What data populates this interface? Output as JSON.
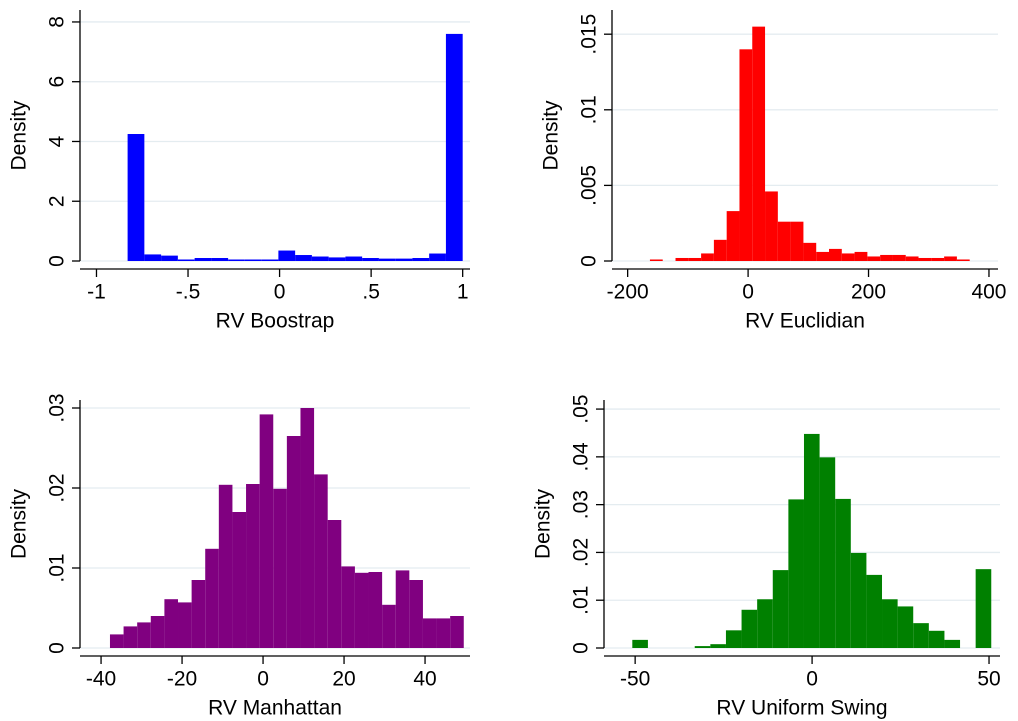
{
  "chart_data": [
    {
      "type": "histogram",
      "x_label": "RV Boostrap",
      "y_label": "Density",
      "color": "#0000ff",
      "grid": true,
      "bins": [
        -0.83,
        -0.7385,
        -0.647,
        -0.5555,
        -0.464,
        -0.3725,
        -0.281,
        -0.1895,
        -0.098,
        -0.0065,
        0.085,
        0.1765,
        0.268,
        0.3595,
        0.451,
        0.5425,
        0.634,
        0.7255,
        0.817,
        0.9085,
        1.0
      ],
      "values": [
        4.25,
        0.22,
        0.18,
        0.05,
        0.1,
        0.1,
        0.05,
        0.05,
        0.05,
        0.35,
        0.2,
        0.15,
        0.12,
        0.15,
        0.1,
        0.08,
        0.08,
        0.1,
        0.25,
        7.6
      ],
      "xlim": [
        -1.09,
        1.04
      ],
      "ylim": [
        0,
        8.4
      ],
      "xticks": [
        -1,
        {
          "value": -0.5,
          "label": "-.5"
        },
        0,
        {
          "value": 0.5,
          "label": ".5"
        },
        1
      ],
      "yticks": [
        0,
        2,
        4,
        6,
        8
      ]
    },
    {
      "type": "histogram",
      "x_label": "RV Euclidian",
      "y_label": "Density",
      "color": "#ff0000",
      "grid": true,
      "bins": [
        -163,
        -141.76,
        -120.52,
        -99.28,
        -78.04,
        -56.8,
        -35.56,
        -14.32,
        6.92,
        28.16,
        49.4,
        70.64,
        91.88,
        113.12,
        134.36,
        155.6,
        176.84,
        198.08,
        219.32,
        240.56,
        261.8,
        283.04,
        304.28,
        325.52,
        346.76,
        368
      ],
      "values": [
        0.0001,
        0,
        0.0002,
        0.0002,
        0.0005,
        0.0014,
        0.0033,
        0.014,
        0.0155,
        0.0046,
        0.0026,
        0.0026,
        0.0012,
        0.0006,
        0.0008,
        0.0005,
        0.0006,
        0.0003,
        0.0004,
        0.0004,
        0.0003,
        0.0002,
        0.0002,
        0.0003,
        0.0001
      ],
      "xlim": [
        -226,
        415
      ],
      "ylim": [
        0,
        0.0166
      ],
      "xticks": [
        -200,
        0,
        200,
        400
      ],
      "yticks": [
        0,
        {
          "value": 0.005,
          "label": ".005"
        },
        {
          "value": 0.01,
          "label": ".01"
        },
        {
          "value": 0.015,
          "label": ".015"
        }
      ]
    },
    {
      "type": "histogram",
      "x_label": "RV Manhattan",
      "y_label": "Density",
      "color": "#800080",
      "grid": true,
      "bins": [
        -37.8,
        -34.44,
        -31.08,
        -27.72,
        -24.36,
        -21.0,
        -17.64,
        -14.28,
        -10.92,
        -7.56,
        -4.2,
        -0.84,
        2.52,
        5.88,
        9.24,
        12.6,
        15.96,
        19.32,
        22.68,
        26.04,
        29.4,
        32.76,
        36.12,
        39.48,
        42.84,
        46.2,
        49.56
      ],
      "values": [
        0.0017,
        0.0027,
        0.0032,
        0.004,
        0.0061,
        0.0057,
        0.0085,
        0.0124,
        0.0204,
        0.017,
        0.0205,
        0.0292,
        0.0199,
        0.0265,
        0.03,
        0.0217,
        0.016,
        0.0102,
        0.0094,
        0.0095,
        0.0054,
        0.0097,
        0.0085,
        0.0037,
        0.0037,
        0.004
      ],
      "xlim": [
        -45.2,
        51.1
      ],
      "ylim": [
        0,
        0.031
      ],
      "xticks": [
        -40,
        -20,
        0,
        20,
        40
      ],
      "yticks": [
        0,
        {
          "value": 0.01,
          "label": ".01"
        },
        {
          "value": 0.02,
          "label": ".02"
        },
        {
          "value": 0.03,
          "label": ".03"
        }
      ]
    },
    {
      "type": "histogram",
      "x_label": "RV Uniform Swing",
      "y_label": "Density",
      "color": "#008000",
      "grid": true,
      "bins": [
        -50.8,
        -46.39,
        -41.98,
        -37.57,
        -33.16,
        -28.75,
        -24.34,
        -19.93,
        -15.52,
        -11.11,
        -6.7,
        -2.29,
        2.12,
        6.53,
        10.94,
        15.35,
        19.76,
        24.17,
        28.58,
        32.99,
        37.4,
        41.81,
        46.22,
        50.63
      ],
      "values": [
        0.0017,
        0,
        0,
        0,
        0.0004,
        0.0008,
        0.0037,
        0.008,
        0.0102,
        0.0163,
        0.0311,
        0.0448,
        0.0399,
        0.0312,
        0.0199,
        0.0153,
        0.0102,
        0.0087,
        0.0052,
        0.0036,
        0.0017,
        0,
        0.0165
      ],
      "xlim": [
        -58.8,
        53.1
      ],
      "ylim": [
        0,
        0.0519
      ],
      "xticks": [
        -50,
        0,
        50
      ],
      "yticks": [
        0,
        {
          "value": 0.01,
          "label": ".01"
        },
        {
          "value": 0.02,
          "label": ".02"
        },
        {
          "value": 0.03,
          "label": ".03"
        },
        {
          "value": 0.04,
          "label": ".04"
        },
        {
          "value": 0.05,
          "label": ".05"
        }
      ]
    }
  ]
}
